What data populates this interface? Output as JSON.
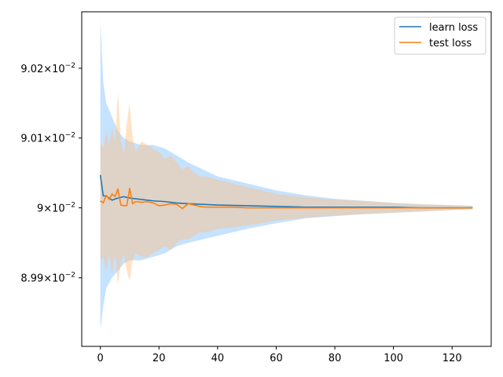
{
  "chart_data": {
    "type": "line",
    "title": "",
    "xlabel": "",
    "ylabel": "",
    "x_scale": "linear",
    "y_scale": "log",
    "xlim": [
      -6.35,
      133.35
    ],
    "ylim": [
      0.089802,
      0.090281
    ],
    "x_ticks": [
      0,
      20,
      40,
      60,
      80,
      100,
      120
    ],
    "x_tick_labels": [
      "0",
      "20",
      "40",
      "60",
      "80",
      "100",
      "120"
    ],
    "y_ticks": [
      0.0899,
      0.09,
      0.0901,
      0.0902
    ],
    "y_tick_labels": [
      {
        "mantissa": "8.99",
        "exponent": "−2"
      },
      {
        "mantissa": "9",
        "exponent": "−2"
      },
      {
        "mantissa": "9.01",
        "exponent": "−2"
      },
      {
        "mantissa": "9.02",
        "exponent": "−2"
      }
    ],
    "grid": false,
    "legend": {
      "position": "top-right"
    },
    "series": [
      {
        "name": "learn loss",
        "color": "#1f77b4",
        "band_color": "#7fbfff",
        "x": [
          0,
          1,
          2,
          4,
          6,
          8,
          10,
          14,
          18,
          22,
          26,
          30,
          35,
          40,
          50,
          60,
          70,
          80,
          90,
          100,
          110,
          127
        ],
        "y": [
          0.090047,
          0.090017,
          0.090017,
          0.090011,
          0.090014,
          0.090016,
          0.090014,
          0.090012,
          0.09001,
          0.090009,
          0.090007,
          0.090006,
          0.090005,
          0.090004,
          0.090003,
          0.090002,
          0.090001,
          0.090001,
          0.090001,
          0.090001,
          0.09,
          0.09
        ],
        "band_upper": [
          0.090268,
          0.09018,
          0.09015,
          0.09013,
          0.09011,
          0.0901,
          0.090095,
          0.09009,
          0.09009,
          0.090085,
          0.090075,
          0.090065,
          0.090055,
          0.090045,
          0.090035,
          0.090025,
          0.090018,
          0.090013,
          0.09001,
          0.090007,
          0.090005,
          0.090003
        ],
        "band_lower": [
          0.089825,
          0.08986,
          0.089885,
          0.0899,
          0.08991,
          0.08992,
          0.089925,
          0.089925,
          0.08993,
          0.089935,
          0.089945,
          0.08995,
          0.089955,
          0.08996,
          0.08997,
          0.089978,
          0.089985,
          0.089988,
          0.089991,
          0.089993,
          0.089995,
          0.089998
        ]
      },
      {
        "name": "test loss",
        "color": "#ff7f0e",
        "band_color": "#ffbf80",
        "x": [
          0,
          1,
          2,
          3,
          4,
          5,
          6,
          7,
          8,
          9,
          10,
          11,
          12,
          14,
          16,
          18,
          20,
          22,
          24,
          26,
          28,
          30,
          32,
          34,
          36,
          40,
          45,
          50,
          55,
          60,
          70,
          80,
          90,
          100,
          110,
          127
        ],
        "y": [
          0.09001,
          0.090007,
          0.090018,
          0.090012,
          0.09002,
          0.090016,
          0.090027,
          0.090004,
          0.090003,
          0.090003,
          0.090028,
          0.090006,
          0.090009,
          0.090008,
          0.090009,
          0.090007,
          0.090003,
          0.090004,
          0.090006,
          0.090005,
          0.089999,
          0.090006,
          0.090004,
          0.090002,
          0.090001,
          0.090001,
          0.090001,
          0.09,
          0.09,
          0.09,
          0.09,
          0.09,
          0.09,
          0.09,
          0.09,
          0.09
        ],
        "band_upper": [
          0.090095,
          0.090085,
          0.09011,
          0.09009,
          0.090115,
          0.090095,
          0.090165,
          0.090095,
          0.090075,
          0.09012,
          0.09015,
          0.0901,
          0.09008,
          0.090095,
          0.09009,
          0.090085,
          0.09008,
          0.09007,
          0.090075,
          0.090065,
          0.090055,
          0.09006,
          0.09005,
          0.090045,
          0.090045,
          0.09004,
          0.090035,
          0.09003,
          0.090025,
          0.09002,
          0.090015,
          0.090012,
          0.09001,
          0.090007,
          0.090005,
          0.090003
        ],
        "band_lower": [
          0.089925,
          0.08993,
          0.08991,
          0.089935,
          0.089905,
          0.089935,
          0.08989,
          0.08992,
          0.089935,
          0.08991,
          0.089895,
          0.089925,
          0.089935,
          0.08993,
          0.08993,
          0.089935,
          0.08994,
          0.089945,
          0.08994,
          0.08995,
          0.089955,
          0.089955,
          0.08996,
          0.089965,
          0.089965,
          0.08997,
          0.089972,
          0.089975,
          0.089978,
          0.089982,
          0.089986,
          0.089989,
          0.089991,
          0.089993,
          0.089995,
          0.089998
        ]
      }
    ]
  }
}
